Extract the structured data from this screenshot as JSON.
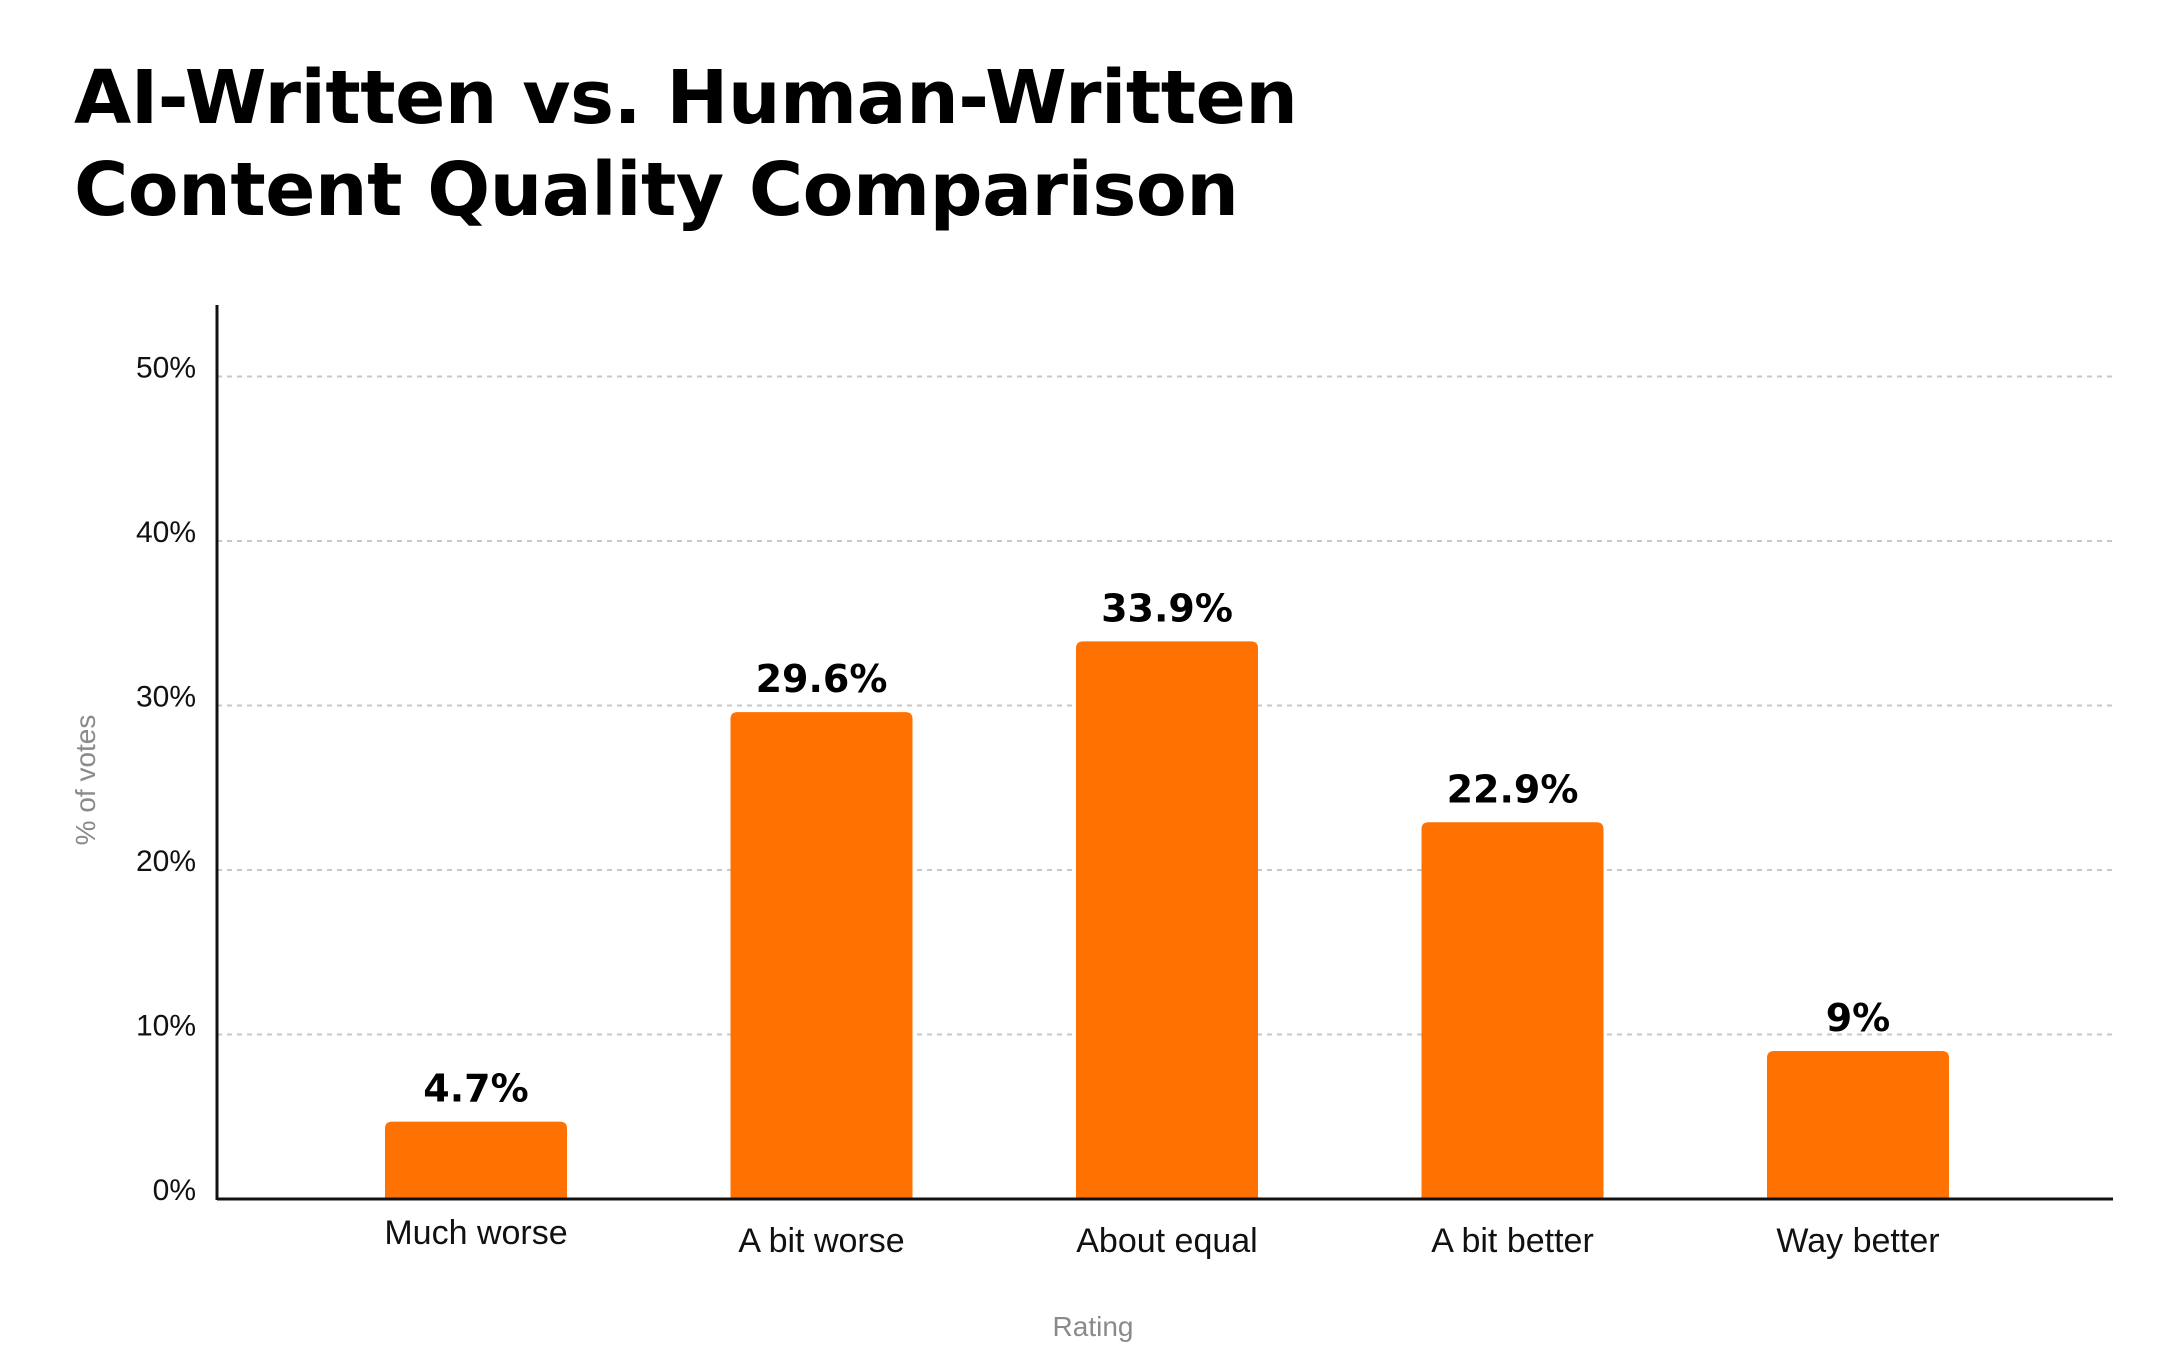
{
  "colors": {
    "bar": "#FF7100",
    "axis": "#111111",
    "grid": "#C8C8C8",
    "axis_title": "#8A8A8A"
  },
  "chart_data": {
    "type": "bar",
    "title_lines": [
      "AI-Written vs. Human-Written",
      "Content Quality Comparison"
    ],
    "xlabel": "Rating",
    "ylabel": "% of votes",
    "categories": [
      "Much worse",
      "A bit worse",
      "About equal",
      "A bit better",
      "Way better"
    ],
    "values": [
      4.7,
      29.6,
      33.9,
      22.9,
      9
    ],
    "value_labels": [
      "4.7%",
      "29.6%",
      "33.9%",
      "22.9%",
      "9%"
    ],
    "ylim": [
      0,
      54
    ],
    "yticks": [
      0,
      10,
      20,
      30,
      40,
      50
    ],
    "ytick_labels": [
      "0%",
      "10%",
      "20%",
      "30%",
      "40%",
      "50%"
    ],
    "grid": true,
    "legend": "none"
  }
}
